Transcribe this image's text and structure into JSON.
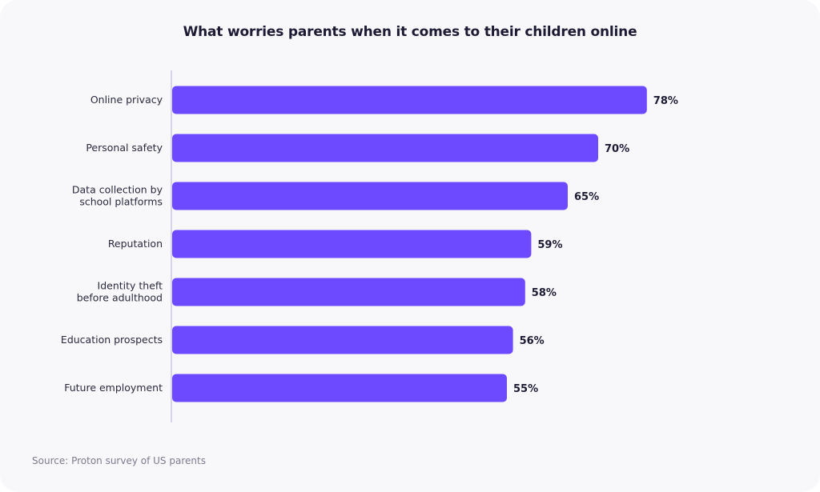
{
  "chart_data": {
    "type": "bar",
    "orientation": "horizontal",
    "title": "What worries parents when it comes to their children online",
    "categories": [
      [
        "Online privacy"
      ],
      [
        "Personal safety"
      ],
      [
        "Data collection by",
        "school platforms"
      ],
      [
        "Reputation"
      ],
      [
        "Identity theft",
        "before adulthood"
      ],
      [
        "Education prospects"
      ],
      [
        "Future employment"
      ]
    ],
    "values": [
      78,
      70,
      65,
      59,
      58,
      56,
      55
    ],
    "value_labels": [
      "78%",
      "70%",
      "65%",
      "59%",
      "58%",
      "56%",
      "55%"
    ],
    "xlim": [
      0,
      100
    ],
    "bar_color": "#6d4aff",
    "axis_color": "#c9c7e6",
    "label_color": "#2a2a3e",
    "value_label_color": "#1c1b33",
    "grid": false,
    "legend": "none"
  },
  "footer": {
    "source": "Source: Proton survey of US parents"
  }
}
